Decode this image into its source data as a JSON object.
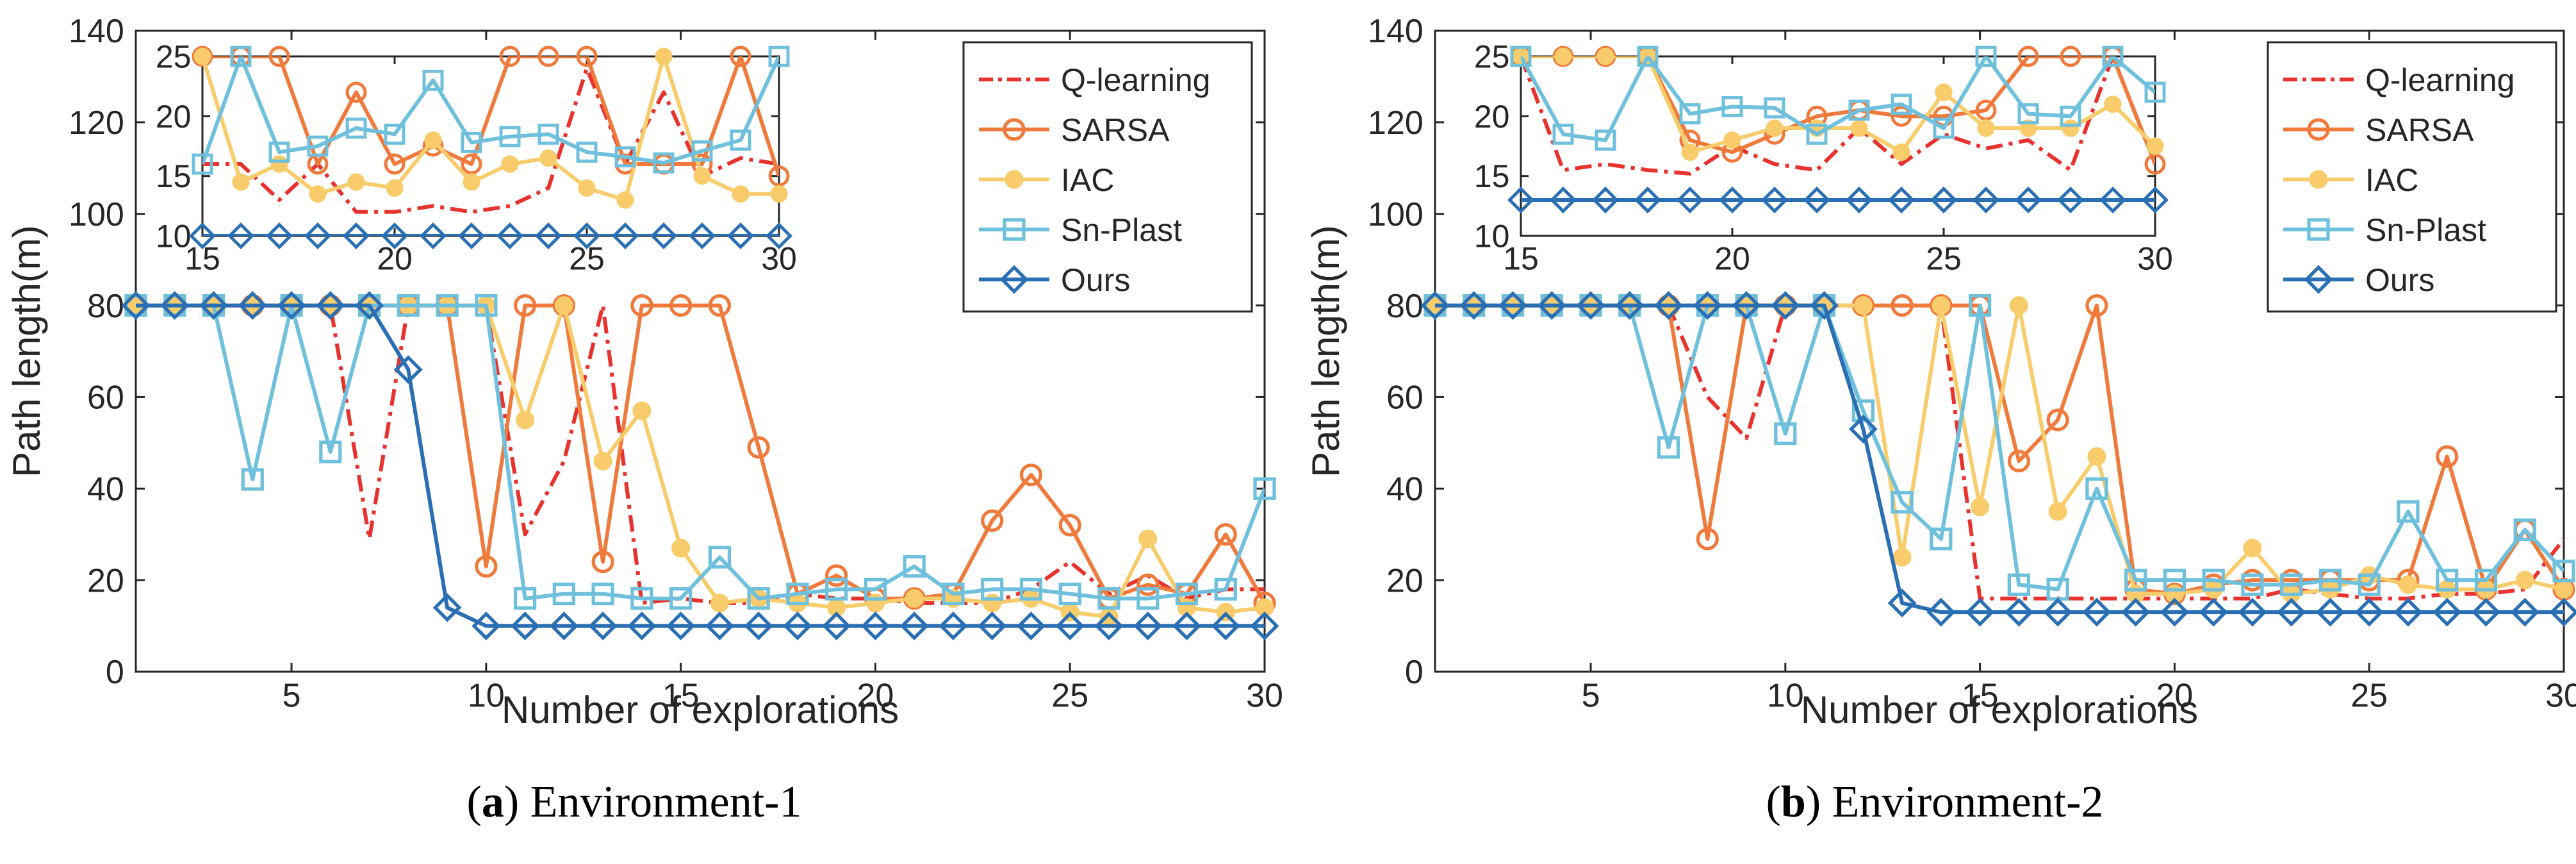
{
  "legend_labels": [
    "Q-learning",
    "SARSA",
    "IAC",
    "Sn-Plast",
    "Ours"
  ],
  "colors": {
    "Q-learning": "#e8322d",
    "SARSA": "#ef7a3b",
    "IAC": "#f8cc6a",
    "Sn-Plast": "#6ec0dc",
    "Ours": "#2a6fb3"
  },
  "captions": [
    {
      "letter": "a",
      "text": "Environment-1"
    },
    {
      "letter": "b",
      "text": "Environment-2"
    }
  ],
  "chart_data": [
    {
      "type": "line",
      "xlabel": "Number of explorations",
      "ylabel": "Path length(m)",
      "xlim": [
        1,
        30
      ],
      "ylim": [
        0,
        140
      ],
      "xticks": [
        5,
        10,
        15,
        20,
        25,
        30
      ],
      "yticks": [
        0,
        20,
        40,
        60,
        80,
        100,
        120,
        140
      ],
      "legend_position": "top-right",
      "x": [
        1,
        2,
        3,
        4,
        5,
        6,
        7,
        8,
        9,
        10,
        11,
        12,
        13,
        14,
        15,
        16,
        17,
        18,
        19,
        20,
        21,
        22,
        23,
        24,
        25,
        26,
        27,
        28,
        29,
        30
      ],
      "series": [
        {
          "name": "Q-learning",
          "values": [
            80,
            80,
            80,
            80,
            80,
            80,
            29,
            80,
            80,
            80,
            30,
            46,
            80,
            15,
            16,
            15,
            15,
            17,
            16,
            16,
            15,
            15,
            15,
            18,
            24,
            17,
            21,
            16,
            18,
            18
          ]
        },
        {
          "name": "SARSA",
          "values": [
            80,
            80,
            80,
            80,
            80,
            80,
            80,
            80,
            80,
            23,
            80,
            80,
            24,
            80,
            80,
            80,
            49,
            17,
            21,
            16,
            16,
            17,
            33,
            43,
            32,
            16,
            19,
            17,
            30,
            15
          ]
        },
        {
          "name": "IAC",
          "values": [
            80,
            80,
            80,
            80,
            80,
            80,
            80,
            80,
            80,
            80,
            55,
            80,
            46,
            57,
            27,
            15,
            16,
            15,
            14,
            15,
            16,
            16,
            15,
            16,
            13,
            12,
            29,
            14,
            13,
            14
          ]
        },
        {
          "name": "Sn-Plast",
          "values": [
            80,
            80,
            80,
            42,
            80,
            48,
            80,
            80,
            80,
            80,
            16,
            17,
            17,
            16,
            16,
            25,
            16,
            17,
            18,
            18,
            23,
            17,
            18,
            18,
            17,
            16,
            16,
            17,
            18,
            40
          ]
        },
        {
          "name": "Ours",
          "values": [
            80,
            80,
            80,
            80,
            80,
            80,
            80,
            66,
            14,
            10,
            10,
            10,
            10,
            10,
            10,
            10,
            10,
            10,
            10,
            10,
            10,
            10,
            10,
            10,
            10,
            10,
            10,
            10,
            10,
            10
          ]
        }
      ],
      "inset": {
        "xlim": [
          15,
          30
        ],
        "ylim": [
          10,
          25
        ],
        "xticks": [
          15,
          20,
          25,
          30
        ],
        "yticks": [
          10,
          15,
          20,
          25
        ],
        "x": [
          15,
          16,
          17,
          18,
          19,
          20,
          21,
          22,
          23,
          24,
          25,
          26,
          27,
          28,
          29,
          30
        ],
        "series": [
          {
            "name": "Q-learning",
            "values": [
              16,
              16,
              13,
              16,
              12,
              12,
              12.5,
              12,
              12.5,
              14,
              24,
              16,
              22,
              15,
              16.5,
              16
            ]
          },
          {
            "name": "SARSA",
            "values": [
              25,
              25,
              25,
              16,
              22,
              16,
              17.5,
              16,
              25,
              25,
              25,
              16,
              16,
              16,
              25,
              15
            ]
          },
          {
            "name": "IAC",
            "values": [
              25,
              14.5,
              16,
              13.5,
              14.5,
              14,
              18,
              14.5,
              16,
              16.5,
              14,
              13,
              25,
              15,
              13.5,
              13.5
            ]
          },
          {
            "name": "Sn-Plast",
            "values": [
              16,
              25,
              17,
              17.5,
              19,
              18.5,
              23,
              17.8,
              18.3,
              18.5,
              17,
              16.6,
              16.1,
              17.1,
              18,
              25
            ]
          },
          {
            "name": "Ours",
            "values": [
              10,
              10,
              10,
              10,
              10,
              10,
              10,
              10,
              10,
              10,
              10,
              10,
              10,
              10,
              10,
              10
            ]
          }
        ]
      }
    },
    {
      "type": "line",
      "xlabel": "Number of explorations",
      "ylabel": "Path length(m)",
      "xlim": [
        1,
        30
      ],
      "ylim": [
        0,
        140
      ],
      "xticks": [
        5,
        10,
        15,
        20,
        25,
        30
      ],
      "yticks": [
        0,
        20,
        40,
        60,
        80,
        100,
        120,
        140
      ],
      "legend_position": "top-right",
      "x": [
        1,
        2,
        3,
        4,
        5,
        6,
        7,
        8,
        9,
        10,
        11,
        12,
        13,
        14,
        15,
        16,
        17,
        18,
        19,
        20,
        21,
        22,
        23,
        24,
        25,
        26,
        27,
        28,
        29,
        30
      ],
      "series": [
        {
          "name": "Q-learning",
          "values": [
            80,
            80,
            80,
            80,
            80,
            80,
            80,
            60,
            51,
            80,
            80,
            80,
            80,
            80,
            16,
            16,
            16,
            16,
            16,
            16,
            16,
            16,
            18,
            17,
            16,
            16,
            17,
            17,
            18,
            29
          ]
        },
        {
          "name": "SARSA",
          "values": [
            80,
            80,
            80,
            80,
            80,
            80,
            80,
            29,
            80,
            80,
            80,
            80,
            80,
            80,
            80,
            46,
            55,
            80,
            18,
            17,
            19,
            20,
            20,
            20,
            20,
            20,
            47,
            18,
            31,
            18
          ]
        },
        {
          "name": "IAC",
          "values": [
            80,
            80,
            80,
            80,
            80,
            80,
            80,
            80,
            80,
            80,
            80,
            80,
            25,
            80,
            36,
            80,
            35,
            47,
            17,
            17,
            18,
            27,
            17,
            18,
            21,
            19,
            18,
            18,
            20,
            18
          ]
        },
        {
          "name": "Sn-Plast",
          "values": [
            80,
            80,
            80,
            80,
            80,
            80,
            49,
            80,
            80,
            52,
            80,
            57,
            37,
            29,
            80,
            19,
            18,
            40,
            20,
            20,
            20,
            19,
            19,
            20,
            19,
            35,
            20,
            20,
            31,
            22
          ]
        },
        {
          "name": "Ours",
          "values": [
            80,
            80,
            80,
            80,
            80,
            80,
            80,
            80,
            80,
            80,
            80,
            53,
            15,
            13,
            13,
            13,
            13,
            13,
            13,
            13,
            13,
            13,
            13,
            13,
            13,
            13,
            13,
            13,
            13,
            13
          ]
        }
      ],
      "inset": {
        "xlim": [
          15,
          30
        ],
        "ylim": [
          10,
          25
        ],
        "xticks": [
          15,
          20,
          25,
          30
        ],
        "yticks": [
          10,
          15,
          20,
          25
        ],
        "x": [
          15,
          16,
          17,
          18,
          19,
          20,
          21,
          22,
          23,
          24,
          25,
          26,
          27,
          28,
          29,
          30
        ],
        "series": [
          {
            "name": "Q-learning",
            "values": [
              25,
              15.5,
              16,
              15.5,
              15.2,
              17.5,
              16,
              15.5,
              19,
              16,
              18.5,
              17.3,
              18,
              15.5,
              25,
              16
            ]
          },
          {
            "name": "SARSA",
            "values": [
              25,
              25,
              25,
              25,
              18,
              17,
              18.5,
              20,
              20.5,
              20,
              20,
              20.5,
              25,
              25,
              25,
              16
            ]
          },
          {
            "name": "IAC",
            "values": [
              25,
              25,
              25,
              25,
              17,
              18,
              19,
              19,
              19,
              17,
              22,
              19,
              19,
              19,
              21,
              17.5
            ]
          },
          {
            "name": "Sn-Plast",
            "values": [
              25,
              18.5,
              18,
              25,
              20.2,
              20.8,
              20.7,
              18.5,
              20.5,
              21,
              19,
              25,
              20.2,
              20,
              25,
              22
            ]
          },
          {
            "name": "Ours",
            "values": [
              13,
              13,
              13,
              13,
              13,
              13,
              13,
              13,
              13,
              13,
              13,
              13,
              13,
              13,
              13,
              13
            ]
          }
        ]
      }
    }
  ]
}
